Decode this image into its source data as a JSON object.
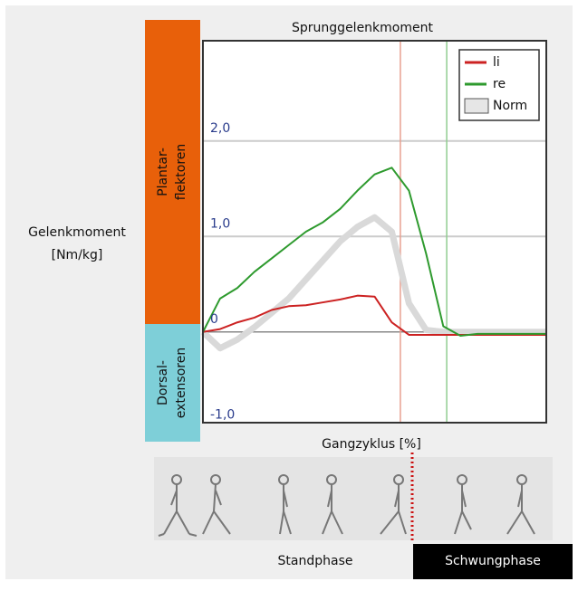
{
  "chart_data": {
    "type": "line",
    "title": "Sprunggelenkmoment",
    "y_label": [
      "Gelenkmoment",
      "[Nm/kg]"
    ],
    "x_label": "Gangzyklus [%]",
    "bands": [
      {
        "label": [
          "Plantar-",
          "flektoren"
        ],
        "color": "#e8600a"
      },
      {
        "label": [
          "Dorsal-",
          "extensoren"
        ],
        "color": "#7ecfd8"
      }
    ],
    "x": [
      0,
      5,
      10,
      15,
      20,
      25,
      30,
      35,
      40,
      45,
      50,
      55,
      60,
      65,
      70,
      75,
      80,
      85,
      90,
      95,
      100
    ],
    "xlim": [
      0,
      100
    ],
    "ylim": [
      -0.95,
      3.05
    ],
    "yticks": [
      {
        "value": 2,
        "label": "2,0"
      },
      {
        "value": 1,
        "label": "1,0"
      },
      0,
      {
        "value": -1,
        "label": "-1,0"
      }
    ],
    "grid": true,
    "series": [
      {
        "name": "Norm",
        "color": "#d9d9d9",
        "values": [
          0,
          -0.17,
          -0.08,
          0.05,
          0.2,
          0.35,
          0.55,
          0.75,
          0.95,
          1.1,
          1.2,
          1.05,
          0.3,
          0.02,
          0,
          0,
          0,
          0,
          0,
          0,
          0
        ]
      },
      {
        "name": "li",
        "color": "#cc2222",
        "values": [
          0,
          0.03,
          0.1,
          0.15,
          0.23,
          0.27,
          0.28,
          0.31,
          0.34,
          0.38,
          0.37,
          0.1,
          -0.03,
          -0.03,
          -0.03,
          -0.03,
          -0.03,
          -0.03,
          -0.03,
          -0.03,
          -0.03
        ]
      },
      {
        "name": "re",
        "color": "#2e9a2e",
        "values": [
          0,
          0.35,
          0.46,
          0.63,
          0.77,
          0.91,
          1.05,
          1.15,
          1.29,
          1.48,
          1.65,
          1.72,
          1.48,
          0.82,
          0.06,
          -0.04,
          -0.02,
          -0.02,
          -0.02,
          -0.02,
          -0.02
        ]
      }
    ],
    "vlines": [
      {
        "x": 57.5,
        "color": "#e8a090"
      },
      {
        "x": 71,
        "color": "#90cc90"
      }
    ],
    "legend": "top-right",
    "phases": [
      "Standphase",
      "Schwungphase"
    ]
  }
}
